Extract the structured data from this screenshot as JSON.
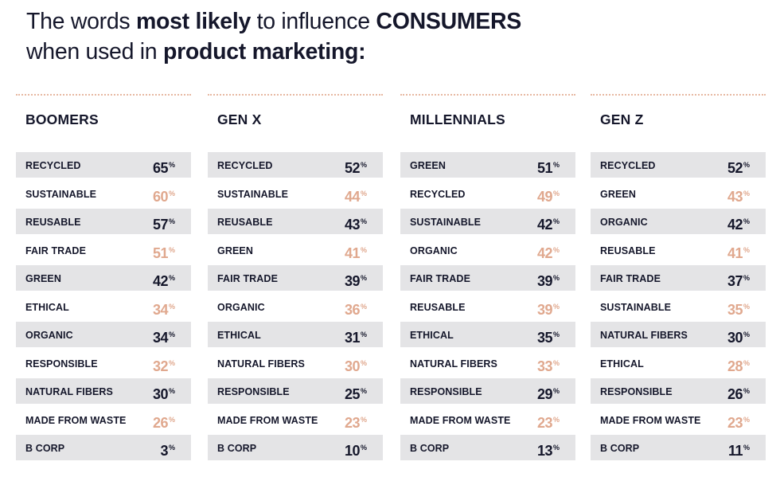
{
  "title": {
    "line1_a": "The words ",
    "line1_b": "most likely",
    "line1_c": " to influence ",
    "line1_d": "CONSUMERS",
    "line2_a": "when used in ",
    "line2_b": "product marketing:"
  },
  "colors": {
    "dark": "#15172b",
    "accent": "#e0a88e",
    "shade": "#e4e4e6",
    "rule": "#e7b8a2"
  },
  "chart_data": [
    {
      "type": "table",
      "title": "BOOMERS",
      "unit": "%",
      "rows": [
        {
          "label": "RECYCLED",
          "value": 65
        },
        {
          "label": "SUSTAINABLE",
          "value": 60
        },
        {
          "label": "REUSABLE",
          "value": 57
        },
        {
          "label": "FAIR TRADE",
          "value": 51
        },
        {
          "label": "GREEN",
          "value": 42
        },
        {
          "label": "ETHICAL",
          "value": 34
        },
        {
          "label": "ORGANIC",
          "value": 34
        },
        {
          "label": "RESPONSIBLE",
          "value": 32
        },
        {
          "label": "NATURAL FIBERS",
          "value": 30
        },
        {
          "label": "MADE FROM WASTE",
          "value": 26
        },
        {
          "label": "B CORP",
          "value": 3
        }
      ]
    },
    {
      "type": "table",
      "title": "GEN X",
      "unit": "%",
      "rows": [
        {
          "label": "RECYCLED",
          "value": 52
        },
        {
          "label": "SUSTAINABLE",
          "value": 44
        },
        {
          "label": "REUSABLE",
          "value": 43
        },
        {
          "label": "GREEN",
          "value": 41
        },
        {
          "label": "FAIR TRADE",
          "value": 39
        },
        {
          "label": "ORGANIC",
          "value": 36
        },
        {
          "label": "ETHICAL",
          "value": 31
        },
        {
          "label": "NATURAL FIBERS",
          "value": 30
        },
        {
          "label": "RESPONSIBLE",
          "value": 25
        },
        {
          "label": "MADE FROM WASTE",
          "value": 23
        },
        {
          "label": "B CORP",
          "value": 10
        }
      ]
    },
    {
      "type": "table",
      "title": "MILLENNIALS",
      "unit": "%",
      "rows": [
        {
          "label": "GREEN",
          "value": 51
        },
        {
          "label": "RECYCLED",
          "value": 49
        },
        {
          "label": "SUSTAINABLE",
          "value": 42
        },
        {
          "label": "ORGANIC",
          "value": 42
        },
        {
          "label": "FAIR TRADE",
          "value": 39
        },
        {
          "label": "REUSABLE",
          "value": 39
        },
        {
          "label": "ETHICAL",
          "value": 35
        },
        {
          "label": "NATURAL FIBERS",
          "value": 33
        },
        {
          "label": "RESPONSIBLE",
          "value": 29
        },
        {
          "label": "MADE FROM WASTE",
          "value": 23
        },
        {
          "label": "B CORP",
          "value": 13
        }
      ]
    },
    {
      "type": "table",
      "title": "GEN Z",
      "unit": "%",
      "rows": [
        {
          "label": "RECYCLED",
          "value": 52
        },
        {
          "label": "GREEN",
          "value": 43
        },
        {
          "label": "ORGANIC",
          "value": 42
        },
        {
          "label": "REUSABLE",
          "value": 41
        },
        {
          "label": "FAIR TRADE",
          "value": 37
        },
        {
          "label": "SUSTAINABLE",
          "value": 35
        },
        {
          "label": "NATURAL FIBERS",
          "value": 30
        },
        {
          "label": "ETHICAL",
          "value": 28
        },
        {
          "label": "RESPONSIBLE",
          "value": 26
        },
        {
          "label": "MADE FROM WASTE",
          "value": 23
        },
        {
          "label": "B CORP",
          "value": 11
        }
      ]
    }
  ]
}
